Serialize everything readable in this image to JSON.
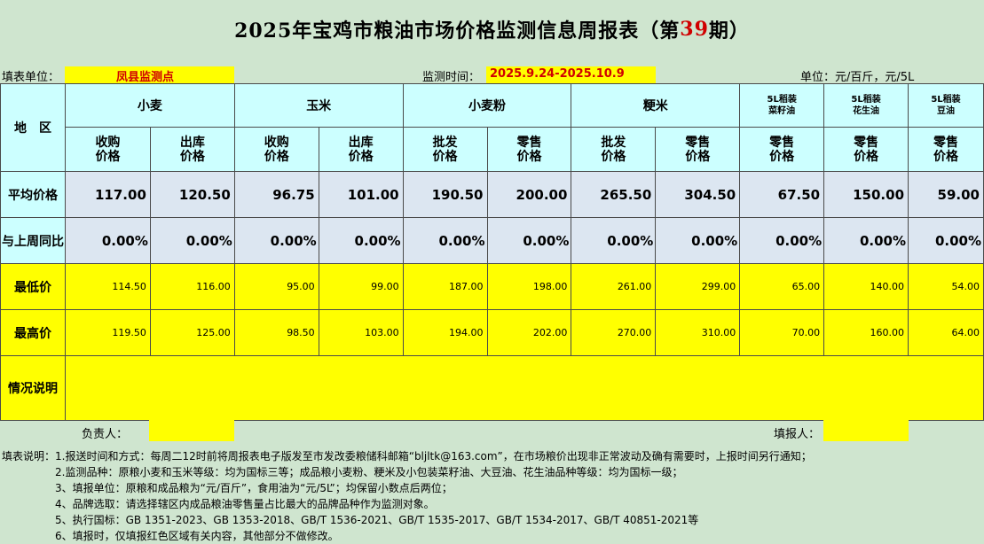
{
  "title": {
    "prefix": "2025年宝鸡市粮油市场价格监测信息周报表（第",
    "issue": "39",
    "suffix": "期）"
  },
  "info": {
    "unit_label": "填表单位：",
    "unit_value": "凤县监测点",
    "time_label": "监测时间：",
    "time_value": "2025.9.24-2025.10.9",
    "measure_label": "单位：元/百斤，元/5L"
  },
  "header": {
    "region": "地　区",
    "groups": [
      "小麦",
      "玉米",
      "小麦粉",
      "粳米",
      "5L稻装\n菜籽油",
      "5L稻装\n花生油",
      "5L稻装\n豆油"
    ],
    "sub": [
      "收购\n价格",
      "出库\n价格",
      "收购\n价格",
      "出库\n价格",
      "批发\n价格",
      "零售\n价格",
      "批发\n价格",
      "零售\n价格",
      "零售\n价格",
      "零售\n价格",
      "零售\n价格"
    ]
  },
  "rows": {
    "avg": {
      "label": "平均价格",
      "values": [
        "117.00",
        "120.50",
        "96.75",
        "101.00",
        "190.50",
        "200.00",
        "265.50",
        "304.50",
        "67.50",
        "150.00",
        "59.00"
      ]
    },
    "wow": {
      "label": "与上周同比",
      "values": [
        "0.00%",
        "0.00%",
        "0.00%",
        "0.00%",
        "0.00%",
        "0.00%",
        "0.00%",
        "0.00%",
        "0.00%",
        "0.00%",
        "0.00%"
      ]
    },
    "min": {
      "label": "最低价",
      "values": [
        "114.50",
        "116.00",
        "95.00",
        "99.00",
        "187.00",
        "198.00",
        "261.00",
        "299.00",
        "65.00",
        "140.00",
        "54.00"
      ]
    },
    "max": {
      "label": "最高价",
      "values": [
        "119.50",
        "125.00",
        "98.50",
        "103.00",
        "194.00",
        "202.00",
        "270.00",
        "310.00",
        "70.00",
        "160.00",
        "64.00"
      ]
    },
    "remark": {
      "label": "情况说明"
    }
  },
  "footer": {
    "responsible": "负责人：",
    "reporter": "填报人："
  },
  "notes": [
    "填表说明：1.报送时间和方式：每周二12时前将周报表电子版发至市发改委粮储科邮箱“bljltk@163.com”，在市场粮价出现非正常波动及确有需要时，上报时间另行通知；",
    "2.监测品种：原粮小麦和玉米等级：均为国标三等；成品粮小麦粉、粳米及小包装菜籽油、大豆油、花生油品种等级：均为国标一级；",
    "3、填报单位：原粮和成品粮为“元/百斤”，食用油为“元/5L”；均保留小数点后两位；",
    "4、品牌选取：请选择辖区内成品粮油零售量占比最大的品牌品种作为监测对象。",
    "5、执行国标：GB 1351-2023、GB 1353-2018、GB/T 1536-2021、GB/T 1535-2017、GB/T 1534-2017、GB/T 40851-2021等",
    "6、填报时，仅填报红色区域有关内容，其他部分不做修改。"
  ]
}
